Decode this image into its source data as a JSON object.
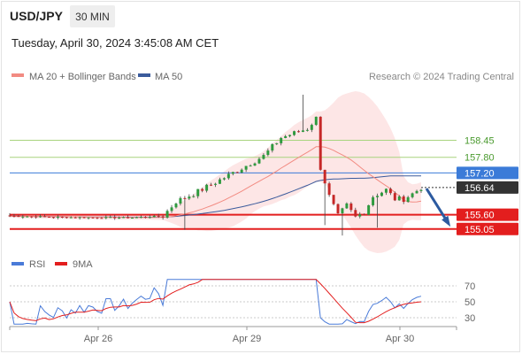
{
  "header": {
    "symbol": "USD/JPY",
    "timeframe": "30 MIN",
    "datetime": "Tuesday, April 30, 2024 3:45:08 AM CET"
  },
  "legend": {
    "ma20_label": "MA 20 + Bollinger Bands",
    "ma50_label": "MA 50",
    "credit": "Research © 2024 Trading Central",
    "rsi_label": "RSI",
    "ma9_label": "9MA"
  },
  "colors": {
    "ma20": "#f28b82",
    "ma50": "#3b5b9c",
    "bollinger_fill": "#fde3e3",
    "up_candle": "#2e9b3e",
    "down_candle": "#c62828",
    "resistance": "#a8d47e",
    "pivot": "#3b7bd8",
    "support": "#e31e1e",
    "price_tag": "#333333",
    "rsi": "#4a7bd8",
    "rsi_ma": "#e31e1e",
    "arrow": "#2c5aa0"
  },
  "chart_data": [
    {
      "type": "candlestick",
      "title": "USD/JPY",
      "x_ticks": [
        "Apr 26",
        "Apr 29",
        "Apr 30"
      ],
      "price_levels": [
        {
          "value": 158.45,
          "label": "158.45",
          "kind": "resistance"
        },
        {
          "value": 157.8,
          "label": "157.80",
          "kind": "resistance"
        },
        {
          "value": 157.2,
          "label": "157.20",
          "kind": "pivot"
        },
        {
          "value": 156.64,
          "label": "156.64",
          "kind": "last_price"
        },
        {
          "value": 155.6,
          "label": "155.60",
          "kind": "support"
        },
        {
          "value": 155.05,
          "label": "155.05",
          "kind": "support"
        }
      ],
      "ylim": [
        154.5,
        160.3
      ],
      "projection": {
        "from": 156.6,
        "to": 155.05
      }
    },
    {
      "type": "line",
      "title": "RSI",
      "series": [
        {
          "name": "RSI"
        },
        {
          "name": "9MA"
        }
      ],
      "y_ticks": [
        70,
        50,
        30
      ],
      "ylim": [
        20,
        80
      ]
    }
  ]
}
